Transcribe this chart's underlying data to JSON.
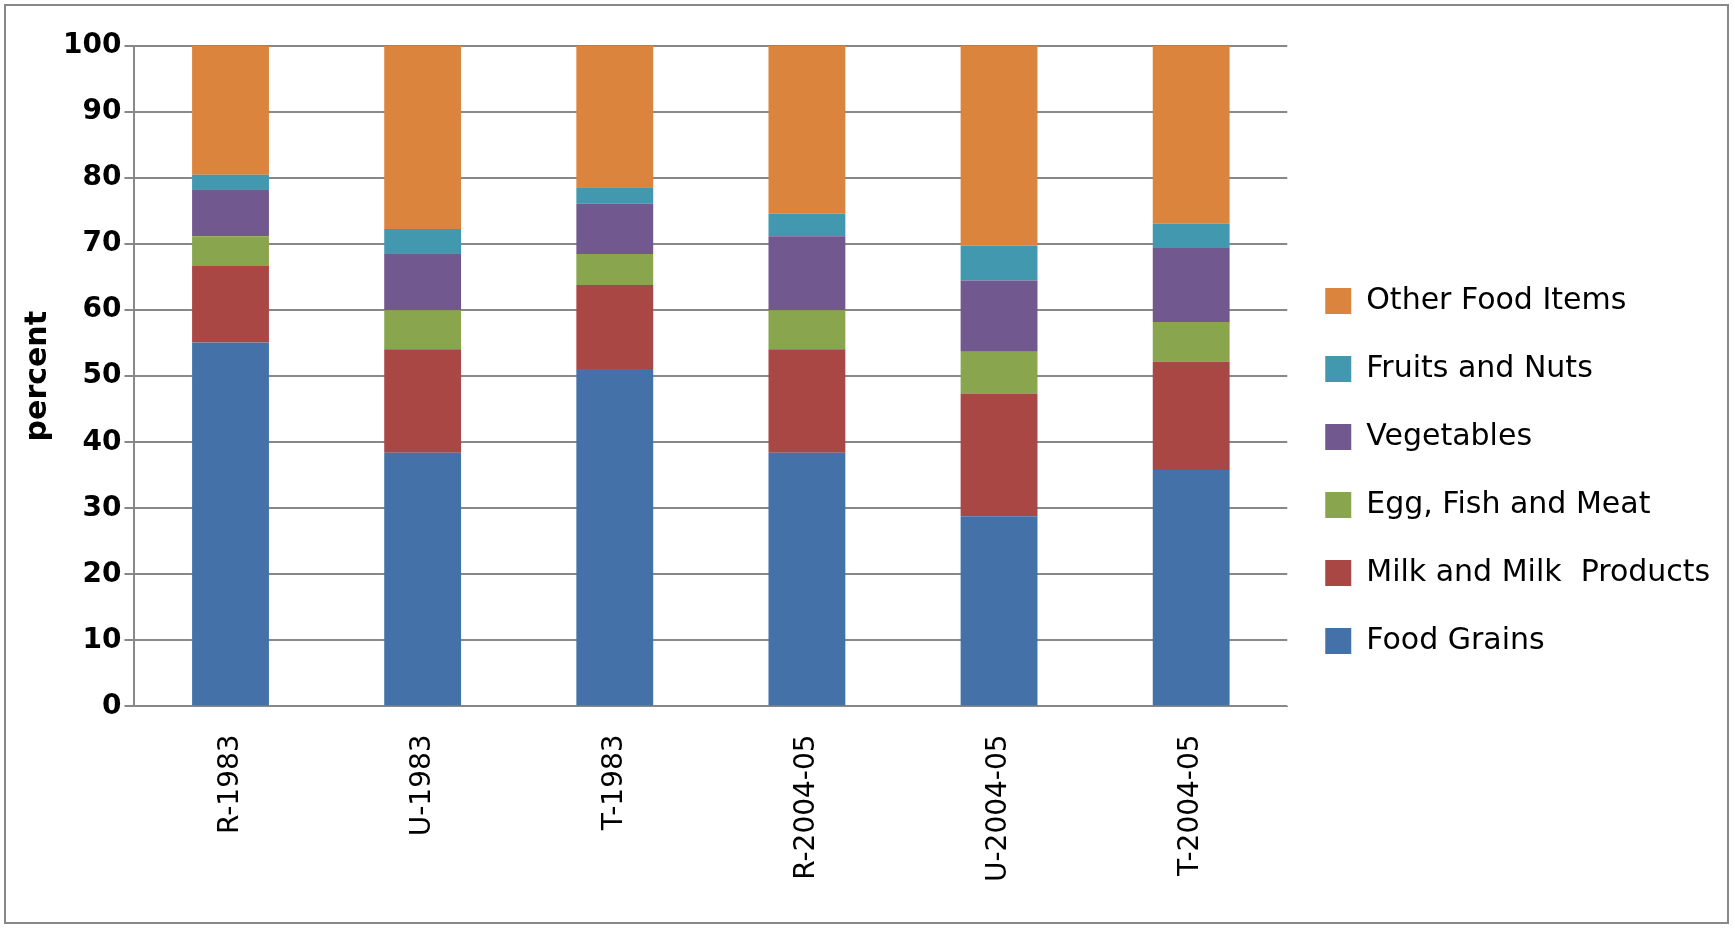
{
  "chart_data": {
    "type": "bar",
    "stacked": true,
    "ylabel": "percent",
    "categories": [
      "R-1983",
      "U-1983",
      "T-1983",
      "R-2004-05",
      "U-2004-05",
      "T-2004-05"
    ],
    "series": [
      {
        "name": "Food Grains",
        "color": "#4472a8",
        "values": [
          55.1,
          38.4,
          51.1,
          38.4,
          28.8,
          35.8
        ]
      },
      {
        "name": "Milk and Milk  Products",
        "color": "#a94744",
        "values": [
          11.6,
          15.7,
          12.7,
          15.7,
          18.6,
          16.4
        ]
      },
      {
        "name": "Egg, Fish and Meat",
        "color": "#89a54e",
        "values": [
          4.5,
          5.9,
          4.7,
          5.9,
          6.3,
          6.0
        ]
      },
      {
        "name": "Vegetables",
        "color": "#71588f",
        "values": [
          7.1,
          8.6,
          7.6,
          11.2,
          10.8,
          11.2
        ]
      },
      {
        "name": "Fruits and Nuts",
        "color": "#4198af",
        "values": [
          2.2,
          3.7,
          2.5,
          3.4,
          5.3,
          3.7
        ]
      },
      {
        "name": "Other Food Items",
        "color": "#db843d",
        "values": [
          19.5,
          27.7,
          21.4,
          25.4,
          30.2,
          26.9
        ]
      }
    ],
    "ylim": [
      0,
      100
    ],
    "yticks": [
      0,
      10,
      20,
      30,
      40,
      50,
      60,
      70,
      80,
      90,
      100
    ],
    "grid": "y",
    "legend": "right"
  }
}
